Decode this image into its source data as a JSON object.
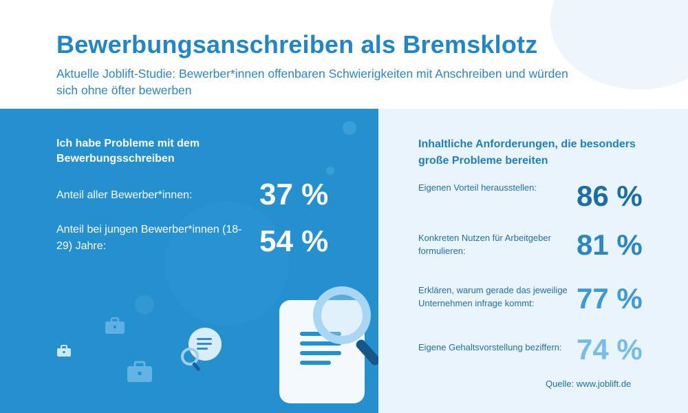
{
  "header": {
    "title": "Bewerbungsanschreiben als Bremsklotz",
    "subtitle": "Aktuelle Joblift-Studie: Bewerber*innen offenbaren Schwierigkeiten mit Anschreiben und würden sich ohne öfter bewerben"
  },
  "left": {
    "heading": "Ich habe Probleme mit dem Bewerbungsschreiben",
    "stats": [
      {
        "label": "Anteil aller Bewerber*innen:",
        "value": "37 %"
      },
      {
        "label": "Anteil bei jungen Bewerber*innen (18-29) Jahre:",
        "value": "54 %"
      }
    ]
  },
  "right": {
    "heading": "Inhaltliche Anforderungen, die besonders große Probleme bereiten",
    "items": [
      {
        "label": "Eigenen Vorteil herausstellen:",
        "value": "86 %",
        "color": "#1a6ea8"
      },
      {
        "label": "Konkreten Nutzen für Arbeitgeber formulieren:",
        "value": "81 %",
        "color": "#2a86c4"
      },
      {
        "label": "Erklären, warum gerade das jeweilige Unternehmen infrage kommt:",
        "value": "77 %",
        "color": "#3c9bd6"
      },
      {
        "label": "Eigene Gehaltsvorstellung beziffern:",
        "value": "74 %",
        "color": "#74bde8"
      }
    ],
    "source": "Quelle: www.joblift.de"
  },
  "icons": [
    "document-icon",
    "magnifier-icon",
    "briefcase-icon",
    "speech-bubble-icon"
  ],
  "colors": {
    "primary": "#1f86c8",
    "panel_left": "#2590ce",
    "panel_right": "#e9f4fc"
  }
}
